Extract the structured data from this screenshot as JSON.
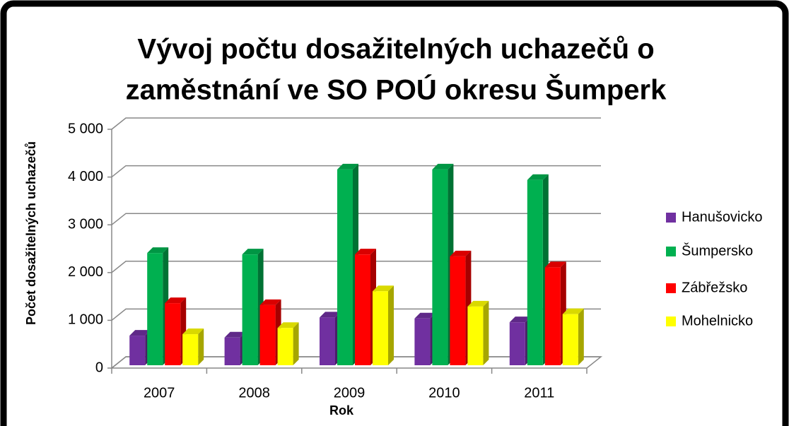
{
  "chart_data": {
    "type": "bar3d",
    "title": "Vývoj počtu dosažitelných uchazečů o",
    "subtitle": "zaměstnání ve SO POÚ okresu Šumperk",
    "y_label": "Počet dosažitelných uchazečů",
    "x_label": "Rok",
    "categories": [
      "2007",
      "2008",
      "2009",
      "2010",
      "2011"
    ],
    "series": [
      {
        "name": "Hanušovicko",
        "color": "#7030a0",
        "values": [
          620,
          580,
          1000,
          980,
          900
        ]
      },
      {
        "name": "Šumpersko",
        "color": "#00b050",
        "values": [
          2350,
          2320,
          4100,
          4100,
          3880
        ]
      },
      {
        "name": "Zábřežsko",
        "color": "#ff0000",
        "values": [
          1300,
          1260,
          2320,
          2280,
          2050
        ]
      },
      {
        "name": "Mohelnicko",
        "color": "#ffff00",
        "values": [
          650,
          780,
          1550,
          1230,
          1070
        ]
      }
    ],
    "ylim": [
      0,
      5000
    ],
    "yticks": [
      0,
      {
        "value": 1000,
        "label": "1 000"
      },
      {
        "value": 2000,
        "label": "2 000"
      },
      {
        "value": 3000,
        "label": "3 000"
      },
      {
        "value": 4000,
        "label": "4 000"
      },
      {
        "value": 5000,
        "label": "5 000"
      }
    ],
    "grid": true,
    "legend": "right"
  }
}
